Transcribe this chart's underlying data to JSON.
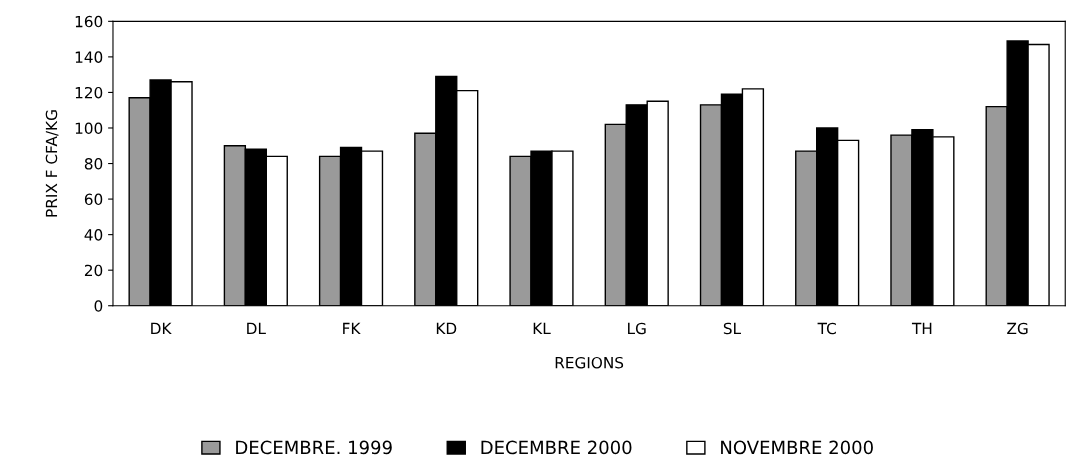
{
  "chart_data": {
    "type": "bar",
    "xlabel": "REGIONS",
    "ylabel": "PRIX F CFA/KG",
    "categories": [
      "DK",
      "DL",
      "FK",
      "KD",
      "KL",
      "LG",
      "SL",
      "TC",
      "TH",
      "ZG"
    ],
    "series": [
      {
        "name": "DECEMBRE. 1999",
        "color": "#9a9a9a",
        "values": [
          117,
          90,
          84,
          97,
          84,
          102,
          113,
          87,
          96,
          112
        ]
      },
      {
        "name": "DECEMBRE 2000",
        "color": "#000000",
        "values": [
          127,
          88,
          89,
          129,
          87,
          113,
          119,
          100,
          99,
          149
        ]
      },
      {
        "name": "NOVEMBRE 2000",
        "color": "#ffffff",
        "values": [
          126,
          84,
          87,
          121,
          87,
          115,
          122,
          93,
          95,
          147
        ]
      }
    ],
    "ylim": [
      0,
      160
    ],
    "yticks": [
      0,
      20,
      40,
      60,
      80,
      100,
      120,
      140,
      160
    ],
    "grid": false,
    "legend": "bottom"
  }
}
